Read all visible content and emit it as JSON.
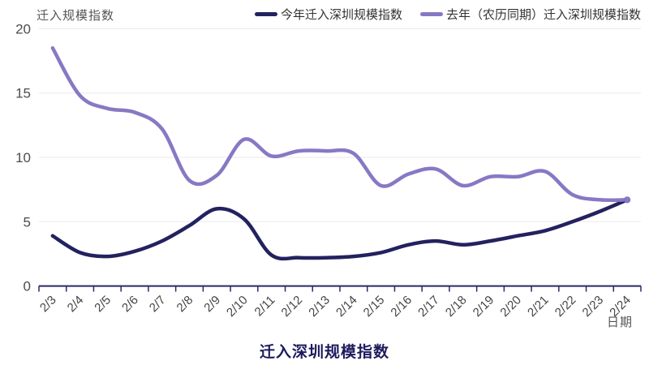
{
  "chart_data": {
    "type": "line",
    "title": "迁入深圳规模指数",
    "ylabel": "迁入规模指数",
    "xlabel": "日期",
    "categories": [
      "2/3",
      "2/4",
      "2/5",
      "2/6",
      "2/7",
      "2/8",
      "2/9",
      "2/10",
      "2/11",
      "2/12",
      "2/13",
      "2/14",
      "2/15",
      "2/16",
      "2/17",
      "2/18",
      "2/19",
      "2/20",
      "2/21",
      "2/22",
      "2/23",
      "2/24"
    ],
    "series": [
      {
        "name": "今年迁入深圳规模指数",
        "color": "#23225F",
        "values": [
          3.9,
          2.6,
          2.3,
          2.7,
          3.5,
          4.7,
          6.0,
          5.2,
          2.4,
          2.2,
          2.2,
          2.3,
          2.6,
          3.2,
          3.5,
          3.2,
          3.5,
          3.9,
          4.3,
          5.0,
          5.8,
          6.7
        ]
      },
      {
        "name": "去年（农历同期）迁入深圳规模指数",
        "color": "#8878C4",
        "values": [
          18.5,
          14.8,
          13.8,
          13.5,
          12.2,
          8.2,
          8.6,
          11.4,
          10.1,
          10.5,
          10.5,
          10.3,
          7.8,
          8.7,
          9.1,
          7.8,
          8.5,
          8.5,
          8.9,
          7.1,
          6.7,
          6.7
        ]
      }
    ],
    "ylim": [
      0,
      20
    ],
    "y_ticks": [
      0,
      5,
      10,
      15,
      20
    ],
    "grid": true,
    "legend_position": "top-right",
    "smooth": true,
    "end_dot": true,
    "colors": {
      "grid": "#EAEAEE",
      "axis_line": "#2B2A66",
      "tick_text": "#4D4D4D",
      "date_text": "#444444",
      "title_text": "#1D1B5E",
      "background": "#FFFFFF"
    }
  }
}
